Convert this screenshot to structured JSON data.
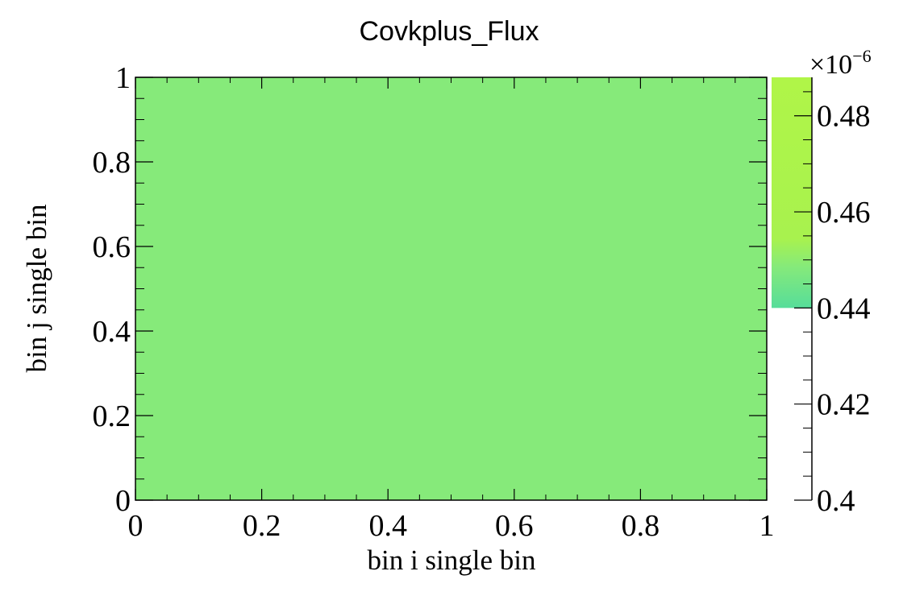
{
  "chart_data": {
    "type": "heatmap",
    "title": "Covkplus_Flux",
    "xlabel": "bin i single bin",
    "ylabel": "bin j single bin",
    "xlim": [
      0,
      1
    ],
    "ylim": [
      0,
      1
    ],
    "x_ticks": [
      "0",
      "0.2",
      "0.4",
      "0.6",
      "0.8",
      "1"
    ],
    "y_ticks": [
      "0",
      "0.2",
      "0.4",
      "0.6",
      "0.8",
      "1"
    ],
    "cells": [
      {
        "x_range": [
          0,
          1
        ],
        "y_range": [
          0,
          1
        ],
        "value": 0.447,
        "color": "#86ea7a"
      }
    ],
    "colorbar": {
      "range": [
        0.4,
        0.488
      ],
      "ticks": [
        "0.4",
        "0.42",
        "0.44",
        "0.46",
        "0.48"
      ],
      "exponent_base": "×10",
      "exponent_power": "−6",
      "filled_from": 0.44,
      "colors": [
        "#56dd9a",
        "#86ea7a",
        "#a8f24e",
        "#b0f548"
      ]
    },
    "grid": false
  }
}
